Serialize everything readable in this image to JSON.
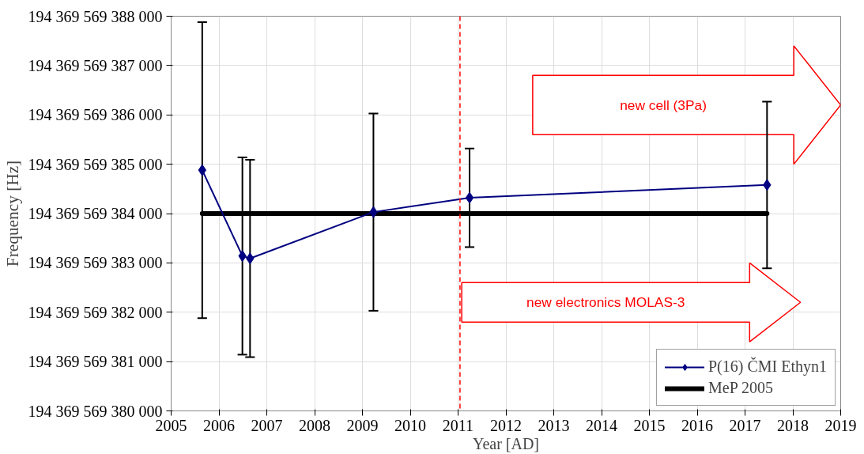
{
  "chart_data": {
    "type": "line",
    "xlabel": "Year [AD]",
    "ylabel": "Frequency [Hz]",
    "xlim": [
      2005,
      2019
    ],
    "xticks": [
      2005,
      2006,
      2007,
      2008,
      2009,
      2010,
      2011,
      2012,
      2013,
      2014,
      2015,
      2016,
      2017,
      2018,
      2019
    ],
    "ylim": [
      194369569380000,
      194369569388000
    ],
    "yticks": [
      {
        "value": 194369569380000,
        "label": "194 369 569 380 000"
      },
      {
        "value": 194369569381000,
        "label": "194 369 569 381 000"
      },
      {
        "value": 194369569382000,
        "label": "194 369 569 382 000"
      },
      {
        "value": 194369569383000,
        "label": "194 369 569 383 000"
      },
      {
        "value": 194369569384000,
        "label": "194 369 569 384 000"
      },
      {
        "value": 194369569385000,
        "label": "194 369 569 385 000"
      },
      {
        "value": 194369569386000,
        "label": "194 369 569 386 000"
      },
      {
        "value": 194369569387000,
        "label": "194 369 569 387 000"
      },
      {
        "value": 194369569388000,
        "label": "194 369 569 388 000"
      }
    ],
    "grid": true,
    "legend": "bottom right",
    "series": [
      {
        "name": "P(16) ČMI Ethyn1",
        "color": "#000080",
        "marker": "diamond",
        "x": [
          2005.65,
          2006.49,
          2006.65,
          2009.23,
          2011.24,
          2017.46
        ],
        "values": [
          194369569384880,
          194369569383140,
          194369569383090,
          194369569384030,
          194369569384320,
          194369569384580
        ],
        "errors": [
          3000,
          2000,
          2000,
          2000,
          1000,
          1690
        ]
      },
      {
        "name": "MeP 2005",
        "color": "#000000",
        "marker": "none",
        "x": [
          2005.65,
          2017.46
        ],
        "values": [
          194369569384000,
          194369569384000
        ]
      }
    ],
    "ref_lines": [
      {
        "axis": "x",
        "value": 2011.04,
        "label": null,
        "color": "#ff0000",
        "line_style": "dashed"
      }
    ],
    "annotations": [
      "new cell (3Pa)",
      "new electronics MOLAS-3"
    ]
  }
}
